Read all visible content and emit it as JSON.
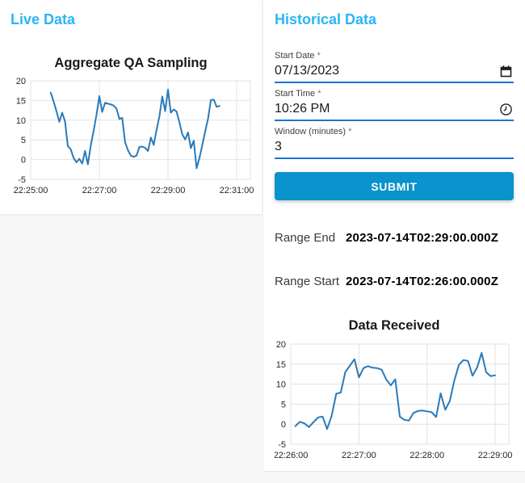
{
  "page": {
    "background": "#f7f7f7",
    "card_background": "#ffffff"
  },
  "accent": {
    "heading_blue": "#29b6f6",
    "button_blue": "#0a93cc",
    "underline_blue": "#1976d2",
    "chart_line_blue": "#2a7ab9"
  },
  "live_panel": {
    "title": "Live Data"
  },
  "historical_panel": {
    "title": "Historical Data",
    "fields": [
      {
        "label": "Start Date",
        "marker": "*",
        "value": "07/13/2023",
        "icon": "calendar-icon"
      },
      {
        "label": "Start Time",
        "marker": "*",
        "value": "10:26 PM",
        "icon": "clock-icon"
      },
      {
        "label": "Window (minutes)",
        "marker": "*",
        "value": "3",
        "icon": null
      }
    ],
    "submit_label": "SUBMIT",
    "results": [
      {
        "label": "Range End",
        "value": "2023-07-14T02:29:00.000Z"
      },
      {
        "label": "Range Start",
        "value": "2023-07-14T02:26:00.000Z"
      }
    ]
  },
  "chart_data": [
    {
      "id": "live",
      "type": "line",
      "title": "Aggregate QA Sampling",
      "xlabel": "",
      "ylabel": "",
      "grid": true,
      "legend": "none",
      "line_color": "#2a7ab9",
      "ylim": [
        -5,
        20
      ],
      "y_ticks": [
        -5,
        0,
        5,
        10,
        15,
        20
      ],
      "xlim": [
        0,
        384
      ],
      "x_unit": "seconds after 22:25:00",
      "x_ticks": [
        {
          "pos": 0,
          "label": "22:25:00"
        },
        {
          "pos": 120,
          "label": "22:27:00"
        },
        {
          "pos": 240,
          "label": "22:29:00"
        },
        {
          "pos": 360,
          "label": "22:31:00"
        }
      ],
      "points": [
        [
          35,
          17.0
        ],
        [
          40,
          14.8
        ],
        [
          45,
          12.3
        ],
        [
          50,
          9.6
        ],
        [
          55,
          11.9
        ],
        [
          60,
          9.7
        ],
        [
          65,
          3.4
        ],
        [
          70,
          2.6
        ],
        [
          75,
          0.4
        ],
        [
          80,
          -0.7
        ],
        [
          85,
          0.2
        ],
        [
          90,
          -1.0
        ],
        [
          95,
          2.2
        ],
        [
          100,
          -1.2
        ],
        [
          105,
          3.6
        ],
        [
          110,
          7.3
        ],
        [
          115,
          11.4
        ],
        [
          120,
          16.1
        ],
        [
          125,
          12.1
        ],
        [
          130,
          14.4
        ],
        [
          135,
          14.2
        ],
        [
          140,
          14.0
        ],
        [
          145,
          13.7
        ],
        [
          150,
          12.9
        ],
        [
          155,
          10.3
        ],
        [
          160,
          10.6
        ],
        [
          165,
          4.4
        ],
        [
          170,
          2.4
        ],
        [
          175,
          1.0
        ],
        [
          180,
          0.7
        ],
        [
          185,
          1.0
        ],
        [
          190,
          3.2
        ],
        [
          195,
          3.3
        ],
        [
          200,
          3.0
        ],
        [
          205,
          2.2
        ],
        [
          210,
          5.6
        ],
        [
          215,
          3.7
        ],
        [
          220,
          7.5
        ],
        [
          225,
          11.0
        ],
        [
          230,
          16.0
        ],
        [
          235,
          12.3
        ],
        [
          240,
          17.8
        ],
        [
          245,
          11.9
        ],
        [
          250,
          12.7
        ],
        [
          255,
          12.2
        ],
        [
          260,
          9.4
        ],
        [
          265,
          6.4
        ],
        [
          270,
          5.1
        ],
        [
          275,
          6.9
        ],
        [
          280,
          2.9
        ],
        [
          285,
          4.8
        ],
        [
          290,
          -2.2
        ],
        [
          295,
          0.5
        ],
        [
          300,
          3.7
        ],
        [
          305,
          7.1
        ],
        [
          310,
          10.4
        ],
        [
          315,
          15.1
        ],
        [
          320,
          15.2
        ],
        [
          325,
          13.4
        ],
        [
          330,
          13.6
        ]
      ]
    },
    {
      "id": "received",
      "type": "line",
      "title": "Data Received",
      "xlabel": "",
      "ylabel": "",
      "grid": true,
      "legend": "none",
      "line_color": "#2a7ab9",
      "ylim": [
        -5,
        20
      ],
      "y_ticks": [
        -5,
        0,
        5,
        10,
        15,
        20
      ],
      "xlim": [
        0,
        192
      ],
      "x_unit": "seconds after 22:26:00",
      "x_ticks": [
        {
          "pos": 0,
          "label": "22:26:00"
        },
        {
          "pos": 60,
          "label": "22:27:00"
        },
        {
          "pos": 120,
          "label": "22:28:00"
        },
        {
          "pos": 180,
          "label": "22:29:00"
        }
      ],
      "points": [
        [
          4,
          -0.5
        ],
        [
          8,
          0.6
        ],
        [
          12,
          0.2
        ],
        [
          16,
          -0.7
        ],
        [
          20,
          0.5
        ],
        [
          24,
          1.7
        ],
        [
          28,
          1.9
        ],
        [
          32,
          -1.2
        ],
        [
          36,
          2.1
        ],
        [
          40,
          7.6
        ],
        [
          44,
          7.9
        ],
        [
          48,
          13.0
        ],
        [
          52,
          14.6
        ],
        [
          56,
          16.2
        ],
        [
          60,
          11.7
        ],
        [
          64,
          14.0
        ],
        [
          68,
          14.5
        ],
        [
          72,
          14.1
        ],
        [
          76,
          14.0
        ],
        [
          80,
          13.6
        ],
        [
          84,
          11.2
        ],
        [
          88,
          9.7
        ],
        [
          92,
          11.2
        ],
        [
          96,
          1.9
        ],
        [
          100,
          1.1
        ],
        [
          104,
          0.9
        ],
        [
          108,
          2.8
        ],
        [
          112,
          3.3
        ],
        [
          116,
          3.4
        ],
        [
          120,
          3.2
        ],
        [
          124,
          3.0
        ],
        [
          128,
          1.8
        ],
        [
          132,
          7.7
        ],
        [
          136,
          3.6
        ],
        [
          140,
          5.8
        ],
        [
          144,
          10.9
        ],
        [
          148,
          14.8
        ],
        [
          152,
          16.0
        ],
        [
          156,
          15.8
        ],
        [
          160,
          12.1
        ],
        [
          164,
          14.1
        ],
        [
          168,
          17.8
        ],
        [
          172,
          13.0
        ],
        [
          176,
          12.0
        ],
        [
          180,
          12.2
        ]
      ]
    }
  ]
}
